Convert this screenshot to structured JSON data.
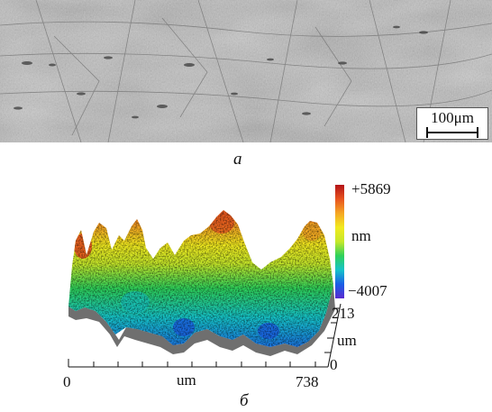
{
  "figure": {
    "panel_a": {
      "label": "a",
      "scale_bar": "100μm"
    },
    "panel_b": {
      "label": "б",
      "colorbar": {
        "max_label": "+5869",
        "min_label": "−4007",
        "unit": "nm",
        "colors": [
          "#5a2ad0",
          "#1a5ee6",
          "#16c3c9",
          "#2ed15a",
          "#c6e82a",
          "#f2ea1f",
          "#f5a623",
          "#e8531f",
          "#b31217"
        ]
      },
      "x_axis": {
        "label": "um",
        "min_label": "0",
        "max_label": "738"
      },
      "y_axis": {
        "label": "um",
        "min_label": "0",
        "max_label": "213"
      }
    }
  }
}
